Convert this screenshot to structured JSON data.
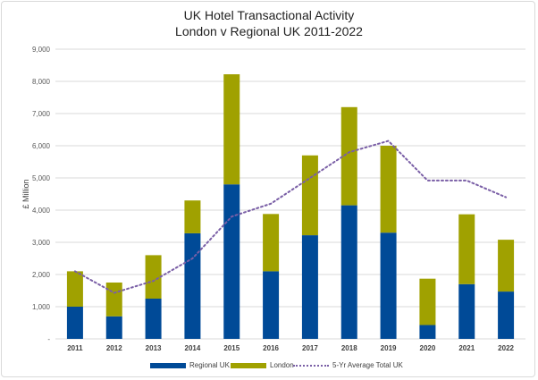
{
  "chart_data": {
    "type": "bar",
    "stacked": true,
    "title": "UK Hotel Transactional Activity",
    "subtitle": "London v Regional UK 2011-2022",
    "ylabel": "£ Million",
    "xlabel": "",
    "ylim": [
      0,
      9000
    ],
    "yticks": [
      0,
      1000,
      2000,
      3000,
      4000,
      5000,
      6000,
      7000,
      8000,
      9000
    ],
    "ytick_labels": [
      "-",
      "1,000",
      "2,000",
      "3,000",
      "4,000",
      "5,000",
      "6,000",
      "7,000",
      "8,000",
      "9,000"
    ],
    "grid": true,
    "categories": [
      "2011",
      "2012",
      "2013",
      "2014",
      "2015",
      "2016",
      "2017",
      "2018",
      "2019",
      "2020",
      "2021",
      "2022"
    ],
    "series": [
      {
        "name": "Regional UK",
        "color": "#004a97",
        "values": [
          1000,
          700,
          1250,
          3280,
          4800,
          2100,
          3220,
          4150,
          3300,
          430,
          1700,
          1470
        ]
      },
      {
        "name": "London",
        "color": "#a0a100",
        "values": [
          1100,
          1050,
          1350,
          1020,
          3420,
          1780,
          2480,
          3050,
          2700,
          1440,
          2170,
          1610
        ]
      },
      {
        "name": "5-Yr Average Total UK",
        "type": "line",
        "style": "dotted",
        "color": "#7a5fa6",
        "values": [
          2100,
          1430,
          1800,
          2500,
          3800,
          4200,
          5000,
          5800,
          6150,
          4920,
          4920,
          4400
        ]
      }
    ],
    "legend_position": "bottom"
  }
}
